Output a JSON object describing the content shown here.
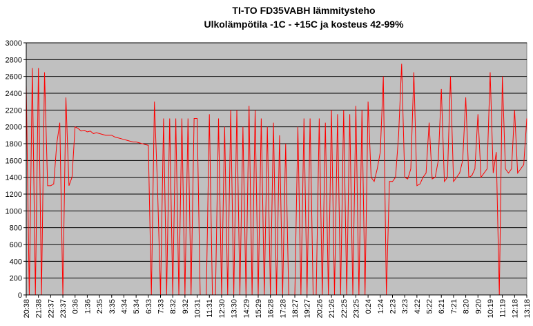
{
  "chart_data": {
    "type": "line",
    "title": "TI-TO FD35VABH lämmitysteho",
    "subtitle": "Ulkolämpötila  -1C - +15C ja kosteus 42-99%",
    "categories": [
      "20:38",
      null,
      null,
      null,
      "21:38",
      null,
      null,
      null,
      "22:37",
      null,
      null,
      null,
      "23:37",
      null,
      null,
      null,
      "0:36",
      null,
      null,
      null,
      "1:36",
      null,
      null,
      null,
      "2:35",
      null,
      null,
      null,
      "3:35",
      null,
      null,
      null,
      "4:34",
      null,
      null,
      null,
      "5:34",
      null,
      null,
      null,
      "6:33",
      null,
      null,
      null,
      "7:33",
      null,
      null,
      null,
      "8:32",
      null,
      null,
      null,
      "9:32",
      null,
      null,
      null,
      "10:31",
      null,
      null,
      null,
      "11:31",
      null,
      null,
      null,
      "12:30",
      null,
      null,
      null,
      "13:30",
      null,
      null,
      null,
      "14:29",
      null,
      null,
      null,
      "15:29",
      null,
      null,
      null,
      "16:28",
      null,
      null,
      null,
      "17:28",
      null,
      null,
      null,
      "18:27",
      null,
      null,
      null,
      "19:27",
      null,
      null,
      null,
      "20:26",
      null,
      null,
      null,
      "21:26",
      null,
      null,
      null,
      "22:25",
      null,
      null,
      null,
      "23:25",
      null,
      null,
      null,
      "0:24",
      null,
      null,
      null,
      "1:24",
      null,
      null,
      null,
      "2:23",
      null,
      null,
      null,
      "3:23",
      null,
      null,
      null,
      "4:22",
      null,
      null,
      null,
      "5:22",
      null,
      null,
      null,
      "6:21",
      null,
      null,
      null,
      "7:21",
      null,
      null,
      null,
      "8:20",
      null,
      null,
      null,
      "9:20",
      null,
      null,
      null,
      "10:19",
      null,
      null,
      null,
      "11:19",
      null,
      null,
      null,
      "12:18",
      null,
      null,
      null,
      "13:18"
    ],
    "values": [
      2500,
      0,
      2700,
      0,
      2700,
      0,
      2650,
      1300,
      1300,
      1320,
      1800,
      2050,
      0,
      2350,
      1300,
      1400,
      2000,
      1980,
      1950,
      1960,
      1940,
      1950,
      1920,
      1930,
      1920,
      1910,
      1900,
      1900,
      1900,
      1880,
      1870,
      1860,
      1850,
      1840,
      1830,
      1820,
      1820,
      1810,
      1800,
      1790,
      1780,
      0,
      2300,
      1300,
      0,
      2100,
      0,
      2100,
      0,
      2100,
      0,
      2100,
      0,
      2100,
      0,
      2100,
      2100,
      0,
      0,
      0,
      2150,
      0,
      0,
      2100,
      0,
      2000,
      0,
      2200,
      0,
      2200,
      0,
      2000,
      0,
      2250,
      0,
      2200,
      0,
      2100,
      0,
      2000,
      0,
      2050,
      0,
      1900,
      0,
      1800,
      0,
      0,
      0,
      2000,
      0,
      2100,
      0,
      2100,
      0,
      0,
      2100,
      0,
      2050,
      0,
      2200,
      0,
      2150,
      0,
      2200,
      0,
      2150,
      0,
      2250,
      0,
      2200,
      0,
      2300,
      1400,
      1350,
      1500,
      1700,
      2600,
      0,
      1350,
      1350,
      1400,
      1900,
      2750,
      1400,
      1380,
      1500,
      2650,
      1300,
      1320,
      1400,
      1450,
      2050,
      1380,
      1400,
      1600,
      2450,
      1350,
      1400,
      2600,
      1350,
      1400,
      1450,
      1600,
      2350,
      1400,
      1420,
      1500,
      2150,
      1400,
      1450,
      1500,
      2650,
      1450,
      1700,
      0,
      2600,
      1500,
      1450,
      1500,
      2200,
      1450,
      1500,
      1550,
      2100
    ],
    "color": "#ff0000",
    "plot_background": "#c0c0c0",
    "ylim": [
      0,
      3000
    ],
    "yticks": [
      0,
      200,
      400,
      600,
      800,
      1000,
      1200,
      1400,
      1600,
      1800,
      2000,
      2200,
      2400,
      2600,
      2800,
      3000
    ],
    "grid": true
  }
}
